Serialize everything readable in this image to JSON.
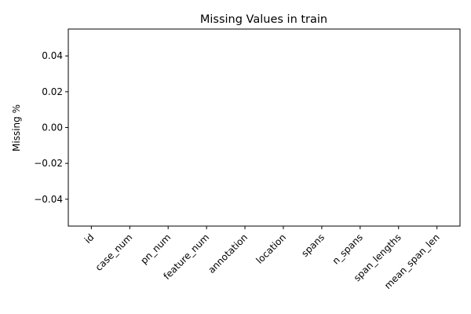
{
  "chart_data": {
    "type": "bar",
    "title": "Missing Values in train",
    "xlabel": "",
    "ylabel": "Missing %",
    "categories": [
      "id",
      "case_num",
      "pn_num",
      "feature_num",
      "annotation",
      "location",
      "spans",
      "n_spans",
      "span_lengths",
      "mean_span_len"
    ],
    "values": [
      0,
      0,
      0,
      0,
      0,
      0,
      0,
      0,
      0,
      0
    ],
    "ylim": [
      -0.055,
      0.055
    ],
    "yticks": [
      -0.04,
      -0.02,
      0.0,
      0.02,
      0.04
    ],
    "ytick_labels": [
      "−0.04",
      "−0.02",
      "0.00",
      "0.02",
      "0.04"
    ],
    "x_tick_rotation": 45,
    "grid": false,
    "legend": "none"
  }
}
